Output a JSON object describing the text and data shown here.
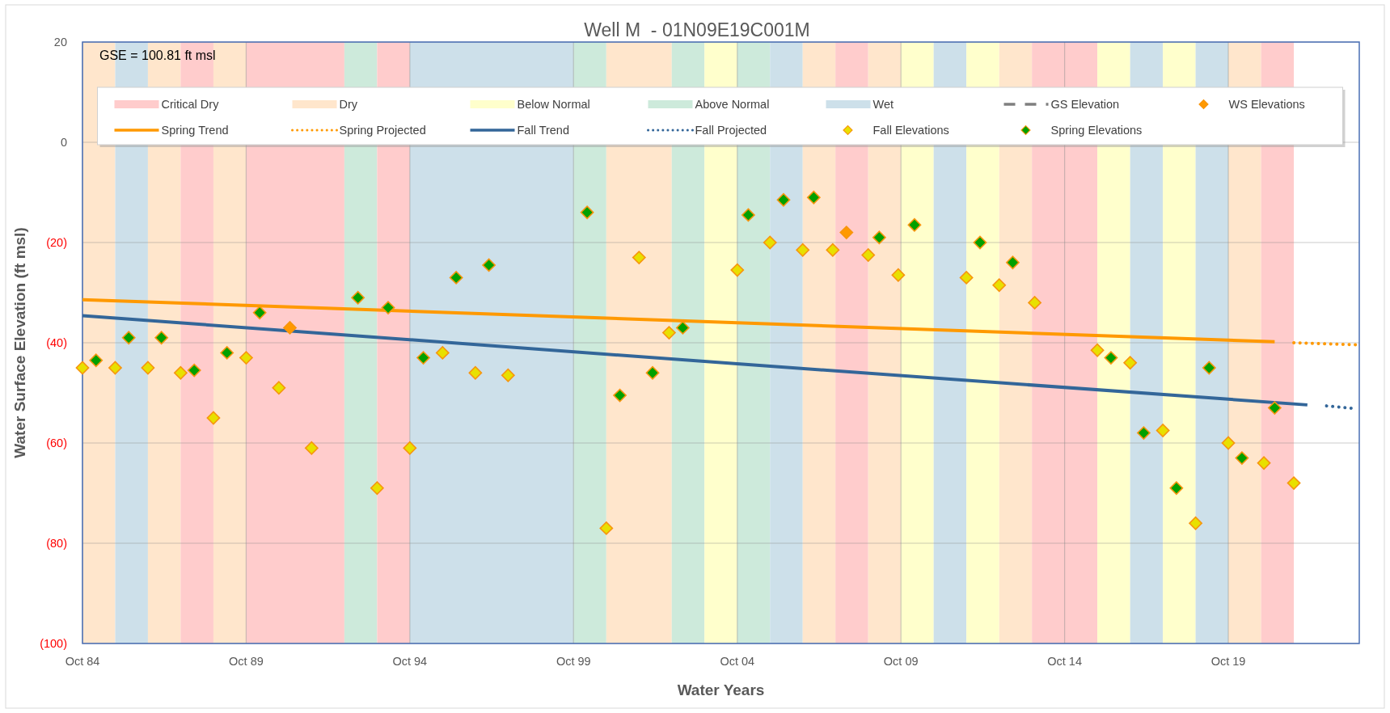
{
  "chart_data": {
    "type": "scatter",
    "title": "Well M  - 01N09E19C001M",
    "xlabel": "Water Years",
    "ylabel": "Water Surface Elevation (ft msl)",
    "annotations": [
      "GSE = 100.81 ft msl"
    ],
    "xlim": [
      "1984-10-01",
      "2023-10-01"
    ],
    "xticks": [
      {
        "value": "1984-10-01",
        "label": "Oct 84"
      },
      {
        "value": "1989-10-01",
        "label": "Oct 89"
      },
      {
        "value": "1994-10-01",
        "label": "Oct 94"
      },
      {
        "value": "1999-10-01",
        "label": "Oct 99"
      },
      {
        "value": "2004-10-01",
        "label": "Oct 04"
      },
      {
        "value": "2009-10-01",
        "label": "Oct 09"
      },
      {
        "value": "2014-10-01",
        "label": "Oct 14"
      },
      {
        "value": "2019-10-01",
        "label": "Oct 19"
      }
    ],
    "ylim": [
      -100,
      20
    ],
    "yticks": [
      20,
      0,
      {
        "value": -20,
        "label": "(20)"
      },
      {
        "value": -40,
        "label": "(40)"
      },
      {
        "value": -60,
        "label": "(60)"
      },
      {
        "value": -80,
        "label": "(80)"
      },
      {
        "value": -100,
        "label": "(100)"
      }
    ],
    "grid": true,
    "legend": "top",
    "bands": [
      {
        "axis": "x",
        "from": "1984-10-01",
        "to": "1985-10-01",
        "color": "#ffe6cc"
      },
      {
        "axis": "x",
        "from": "1985-10-01",
        "to": "1986-10-01",
        "color": "#cde0ea"
      },
      {
        "axis": "x",
        "from": "1986-10-01",
        "to": "1987-10-01",
        "color": "#ffe6cc"
      },
      {
        "axis": "x",
        "from": "1987-10-01",
        "to": "1988-10-01",
        "color": "#ffcccc"
      },
      {
        "axis": "x",
        "from": "1988-10-01",
        "to": "1989-10-01",
        "color": "#ffe6cc"
      },
      {
        "axis": "x",
        "from": "1989-10-01",
        "to": "1992-10-01",
        "color": "#ffcccc"
      },
      {
        "axis": "x",
        "from": "1992-10-01",
        "to": "1993-10-01",
        "color": "#cdeadb"
      },
      {
        "axis": "x",
        "from": "1993-10-01",
        "to": "1994-10-01",
        "color": "#ffcccc"
      },
      {
        "axis": "x",
        "from": "1994-10-01",
        "to": "1999-10-01",
        "color": "#cde0ea"
      },
      {
        "axis": "x",
        "from": "1999-10-01",
        "to": "2000-10-01",
        "color": "#cdeadb"
      },
      {
        "axis": "x",
        "from": "2000-10-01",
        "to": "2002-10-01",
        "color": "#ffe6cc"
      },
      {
        "axis": "x",
        "from": "2002-10-01",
        "to": "2003-10-01",
        "color": "#cdeadb"
      },
      {
        "axis": "x",
        "from": "2003-10-01",
        "to": "2004-10-01",
        "color": "#ffffcc"
      },
      {
        "axis": "x",
        "from": "2004-10-01",
        "to": "2005-10-01",
        "color": "#cdeadb"
      },
      {
        "axis": "x",
        "from": "2005-10-01",
        "to": "2006-10-01",
        "color": "#cde0ea"
      },
      {
        "axis": "x",
        "from": "2006-10-01",
        "to": "2007-10-01",
        "color": "#ffe6cc"
      },
      {
        "axis": "x",
        "from": "2007-10-01",
        "to": "2008-10-01",
        "color": "#ffcccc"
      },
      {
        "axis": "x",
        "from": "2008-10-01",
        "to": "2009-10-01",
        "color": "#ffe6cc"
      },
      {
        "axis": "x",
        "from": "2009-10-01",
        "to": "2010-10-01",
        "color": "#ffffcc"
      },
      {
        "axis": "x",
        "from": "2010-10-01",
        "to": "2011-10-01",
        "color": "#cde0ea"
      },
      {
        "axis": "x",
        "from": "2011-10-01",
        "to": "2012-10-01",
        "color": "#ffffcc"
      },
      {
        "axis": "x",
        "from": "2012-10-01",
        "to": "2013-10-01",
        "color": "#ffe6cc"
      },
      {
        "axis": "x",
        "from": "2013-10-01",
        "to": "2015-10-01",
        "color": "#ffcccc"
      },
      {
        "axis": "x",
        "from": "2015-10-01",
        "to": "2016-10-01",
        "color": "#ffffcc"
      },
      {
        "axis": "x",
        "from": "2016-10-01",
        "to": "2017-10-01",
        "color": "#cde0ea"
      },
      {
        "axis": "x",
        "from": "2017-10-01",
        "to": "2018-10-01",
        "color": "#ffffcc"
      },
      {
        "axis": "x",
        "from": "2018-10-01",
        "to": "2019-10-01",
        "color": "#cde0ea"
      },
      {
        "axis": "x",
        "from": "2019-10-01",
        "to": "2020-10-01",
        "color": "#ffe6cc"
      },
      {
        "axis": "x",
        "from": "2020-10-01",
        "to": "2021-10-01",
        "color": "#ffcccc"
      }
    ],
    "series": [
      {
        "name": "Critical Dry",
        "type": "area",
        "color": "#ffcccc"
      },
      {
        "name": "Dry",
        "type": "area",
        "color": "#ffe6cc"
      },
      {
        "name": "Below Normal",
        "type": "area",
        "color": "#ffffcc"
      },
      {
        "name": "Above Normal",
        "type": "area",
        "color": "#cdeadb"
      },
      {
        "name": "Wet",
        "type": "area",
        "color": "#cde0ea"
      },
      {
        "name": "GS Elevation",
        "type": "line",
        "line_style": "dashed",
        "color": "#7f7f7f"
      },
      {
        "name": "WS Elevations",
        "marker": "diamond",
        "color": "#ff9900",
        "x": [
          "1991-02",
          "2008-02"
        ],
        "values": [
          -37,
          -18
        ]
      },
      {
        "name": "Spring Trend",
        "type": "line",
        "line_style": "solid",
        "color": "#ff9900",
        "x": [
          "1984-10",
          "2004-10",
          "2021-03"
        ],
        "values": [
          -31.4,
          -36,
          -39.8
        ]
      },
      {
        "name": "Spring Projected",
        "type": "line",
        "line_style": "dotted",
        "color": "#ff9900",
        "x": [
          "2021-10",
          "2023-09"
        ],
        "values": [
          -40,
          -40.4
        ]
      },
      {
        "name": "Fall Trend",
        "type": "line",
        "line_style": "solid",
        "color": "#336699",
        "x": [
          "1984-10",
          "2004-10",
          "2022-03"
        ],
        "values": [
          -34.6,
          -44.2,
          -52.4
        ]
      },
      {
        "name": "Fall Projected",
        "type": "line",
        "line_style": "dotted",
        "color": "#336699",
        "x": [
          "2022-10",
          "2023-08"
        ],
        "values": [
          -52.6,
          -53.1
        ]
      },
      {
        "name": "Fall Elevations",
        "marker": "diamond",
        "color": "#e8e000",
        "x": [
          "1984-10",
          "1985-10",
          "1986-10",
          "1987-10",
          "1988-10",
          "1989-10",
          "1990-10",
          "1991-10",
          "1993-10",
          "1994-10",
          "1995-10",
          "1996-10",
          "1997-10",
          "2000-10",
          "2001-10",
          "2002-09",
          "2004-10",
          "2005-10",
          "2006-10",
          "2007-09",
          "2008-10",
          "2009-09",
          "2011-10",
          "2012-10",
          "2013-11",
          "2015-10",
          "2016-10",
          "2017-10",
          "2018-10",
          "2019-10",
          "2020-11",
          "2021-10"
        ],
        "values": [
          -45,
          -45,
          -45,
          -46,
          -55,
          -43,
          -49,
          -61,
          -69,
          -61,
          -42,
          -46,
          -46.5,
          -77,
          -23,
          -38,
          -25.5,
          -20,
          -21.5,
          -21.5,
          -22.5,
          -26.5,
          -27,
          -28.5,
          -32,
          -41.5,
          -44,
          -57.5,
          -76,
          -60,
          -64,
          -68
        ]
      },
      {
        "name": "Spring Elevations",
        "marker": "diamond",
        "color": "#00a000",
        "x": [
          "1985-03",
          "1986-03",
          "1987-03",
          "1988-03",
          "1989-03",
          "1990-03",
          "1993-03",
          "1994-02",
          "1995-03",
          "1996-03",
          "1997-03",
          "2000-03",
          "2001-03",
          "2002-03",
          "2003-02",
          "2005-02",
          "2006-03",
          "2007-02",
          "2009-02",
          "2010-03",
          "2012-03",
          "2013-03",
          "2016-03",
          "2017-03",
          "2018-03",
          "2019-03",
          "2020-03",
          "2021-03"
        ],
        "values": [
          -43.5,
          -39,
          -39,
          -45.5,
          -42,
          -34,
          -31,
          -33,
          -43,
          -27,
          -24.5,
          -14,
          -50.5,
          -46,
          -37,
          -14.5,
          -11.5,
          -11,
          -19,
          -16.5,
          -20,
          -24,
          -43,
          -58,
          -69,
          -45,
          -63,
          -53
        ]
      }
    ]
  }
}
